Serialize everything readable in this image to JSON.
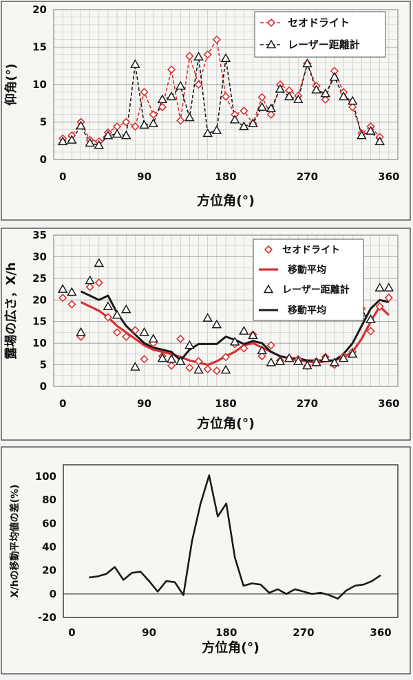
{
  "chart_data": [
    {
      "type": "line",
      "ylabel": "仰角(°)",
      "xlabel": "方位角(°)",
      "xlim": [
        -10,
        370
      ],
      "ylim": [
        0,
        20
      ],
      "xticks": [
        0,
        90,
        180,
        270,
        360
      ],
      "yticks": [
        0,
        5,
        10,
        15,
        20
      ],
      "grid": true,
      "legend_position": "top-right",
      "legend": [
        "セオドライト",
        "レーザー距離計"
      ],
      "colors": {
        "theodolite": "#d93030",
        "laser": "#1a1a1a"
      },
      "series": [
        {
          "name": "セオドライト",
          "marker": "diamond",
          "line": "dashed",
          "x": [
            0,
            10,
            20,
            30,
            40,
            50,
            60,
            70,
            80,
            90,
            100,
            110,
            120,
            130,
            140,
            150,
            160,
            170,
            180,
            190,
            200,
            210,
            220,
            230,
            240,
            250,
            260,
            270,
            280,
            290,
            300,
            310,
            320,
            330,
            340,
            350
          ],
          "y": [
            2.8,
            3.2,
            5.0,
            2.6,
            2.4,
            3.6,
            4.4,
            5.0,
            4.4,
            9.0,
            6.0,
            7.0,
            12.0,
            5.2,
            13.8,
            10.0,
            14.0,
            16.0,
            8.4,
            6.0,
            6.5,
            4.8,
            8.3,
            6.0,
            10.0,
            9.2,
            8.5,
            12.8,
            9.8,
            8.0,
            11.8,
            9.0,
            7.0,
            3.5,
            4.4,
            3.0
          ]
        },
        {
          "name": "レーザー距離計",
          "marker": "triangle",
          "line": "dashed",
          "x": [
            0,
            10,
            20,
            30,
            40,
            50,
            60,
            70,
            80,
            90,
            100,
            110,
            120,
            130,
            140,
            150,
            160,
            170,
            180,
            190,
            200,
            210,
            220,
            230,
            240,
            250,
            260,
            270,
            280,
            290,
            300,
            310,
            320,
            330,
            340,
            350
          ],
          "y": [
            2.4,
            2.6,
            4.5,
            2.2,
            1.9,
            3.2,
            3.4,
            3.2,
            12.7,
            4.6,
            4.8,
            8.0,
            8.4,
            9.8,
            5.6,
            13.7,
            3.5,
            3.9,
            13.5,
            5.3,
            4.4,
            4.8,
            7.0,
            6.8,
            9.4,
            8.4,
            8.0,
            12.8,
            9.3,
            8.8,
            11.0,
            8.4,
            7.8,
            3.2,
            3.8,
            2.4
          ]
        }
      ]
    },
    {
      "type": "scatter",
      "ylabel": "露場の広さ，X/h",
      "xlabel": "方位角(°)",
      "xlim": [
        -10,
        370
      ],
      "ylim": [
        0,
        35
      ],
      "xticks": [
        0,
        90,
        180,
        270,
        360
      ],
      "yticks": [
        0,
        5,
        10,
        15,
        20,
        25,
        30,
        35
      ],
      "grid": true,
      "legend_position": "top-right",
      "legend": [
        "セオドライト",
        "移動平均",
        "レーザー距離計",
        "移動平均"
      ],
      "colors": {
        "theodolite": "#d93030",
        "laser": "#1a1a1a"
      },
      "series": [
        {
          "name": "セオドライト",
          "marker": "diamond",
          "x": [
            0,
            10,
            20,
            30,
            40,
            50,
            60,
            70,
            80,
            90,
            100,
            110,
            120,
            130,
            140,
            150,
            160,
            170,
            180,
            190,
            200,
            210,
            220,
            230,
            240,
            250,
            260,
            270,
            280,
            290,
            300,
            310,
            320,
            330,
            340,
            350,
            360
          ],
          "y": [
            20.5,
            19.0,
            11.5,
            23.0,
            24.0,
            16.0,
            12.5,
            11.5,
            13.0,
            6.3,
            10.0,
            7.0,
            4.8,
            11.0,
            4.3,
            5.8,
            4.0,
            3.6,
            6.8,
            9.8,
            8.8,
            12.0,
            7.0,
            9.5,
            6.0,
            6.5,
            6.3,
            4.7,
            5.8,
            6.8,
            5.0,
            7.0,
            8.0,
            18.0,
            12.8,
            18.5,
            20.5
          ]
        },
        {
          "name": "移動平均",
          "line": "solid",
          "x": [
            20,
            30,
            40,
            50,
            60,
            70,
            80,
            90,
            100,
            110,
            120,
            130,
            140,
            150,
            160,
            170,
            180,
            190,
            200,
            210,
            220,
            230,
            240,
            250,
            260,
            270,
            280,
            290,
            300,
            310,
            320,
            330,
            340,
            350,
            360
          ],
          "y": [
            19.5,
            18.5,
            17.5,
            16.0,
            14.0,
            12.5,
            11.0,
            9.5,
            8.5,
            8.0,
            7.5,
            6.8,
            6.0,
            5.5,
            5.0,
            5.8,
            7.0,
            8.0,
            9.5,
            10.0,
            9.0,
            8.0,
            7.0,
            6.5,
            6.0,
            5.8,
            5.5,
            5.8,
            6.0,
            6.8,
            8.0,
            11.0,
            15.0,
            18.5,
            16.5
          ]
        },
        {
          "name": "レーザー距離計",
          "marker": "triangle",
          "x": [
            0,
            10,
            20,
            30,
            40,
            50,
            60,
            70,
            80,
            90,
            100,
            110,
            120,
            130,
            140,
            150,
            160,
            170,
            180,
            190,
            200,
            210,
            220,
            230,
            240,
            250,
            260,
            270,
            280,
            290,
            300,
            310,
            320,
            330,
            340,
            350,
            360
          ],
          "y": [
            22.5,
            21.8,
            12.5,
            24.5,
            28.5,
            18.5,
            16.5,
            17.8,
            4.5,
            12.5,
            11.0,
            6.5,
            6.3,
            5.8,
            9.5,
            3.8,
            15.8,
            14.3,
            3.8,
            10.3,
            12.8,
            11.8,
            8.3,
            5.5,
            5.8,
            6.5,
            5.8,
            4.8,
            5.5,
            6.5,
            5.5,
            6.5,
            7.5,
            17.0,
            15.5,
            22.8,
            22.8
          ]
        },
        {
          "name": "移動平均",
          "line": "solid",
          "x": [
            20,
            30,
            40,
            50,
            60,
            70,
            80,
            90,
            100,
            110,
            120,
            130,
            140,
            150,
            160,
            170,
            180,
            190,
            200,
            210,
            220,
            230,
            240,
            250,
            260,
            270,
            280,
            290,
            300,
            310,
            320,
            330,
            340,
            350,
            360
          ],
          "y": [
            22.0,
            21.0,
            20.0,
            21.0,
            17.0,
            14.0,
            12.0,
            10.0,
            9.0,
            8.5,
            8.0,
            6.0,
            8.5,
            9.8,
            9.8,
            9.8,
            11.5,
            10.8,
            9.8,
            10.5,
            10.0,
            8.0,
            7.0,
            6.5,
            6.5,
            6.0,
            6.0,
            6.0,
            6.0,
            7.5,
            10.0,
            14.0,
            18.0,
            20.0,
            19.5
          ]
        }
      ]
    },
    {
      "type": "line",
      "ylabel": "X/hの移動平均値の差(%)",
      "xlabel": "方位角(°)",
      "xlim": [
        -10,
        380
      ],
      "ylim": [
        -20,
        110
      ],
      "xticks": [
        0,
        90,
        180,
        270,
        360
      ],
      "yticks": [
        -20,
        0,
        20,
        40,
        60,
        80,
        100
      ],
      "grid": false,
      "colors": {
        "line": "#1a1a1a"
      },
      "series": [
        {
          "x": [
            20,
            30,
            40,
            50,
            60,
            70,
            80,
            90,
            100,
            110,
            120,
            130,
            140,
            150,
            160,
            170,
            180,
            190,
            200,
            210,
            220,
            230,
            240,
            250,
            260,
            270,
            280,
            290,
            300,
            310,
            320,
            330,
            340,
            350,
            360
          ],
          "y": [
            14,
            15,
            17,
            23,
            12,
            18,
            19,
            11,
            2,
            11,
            10,
            -1,
            45,
            77,
            101,
            66,
            77,
            31,
            7,
            9,
            8,
            1,
            4,
            0,
            4,
            2,
            0,
            1,
            -1,
            -4,
            3,
            7,
            8,
            11,
            16
          ]
        }
      ]
    }
  ]
}
